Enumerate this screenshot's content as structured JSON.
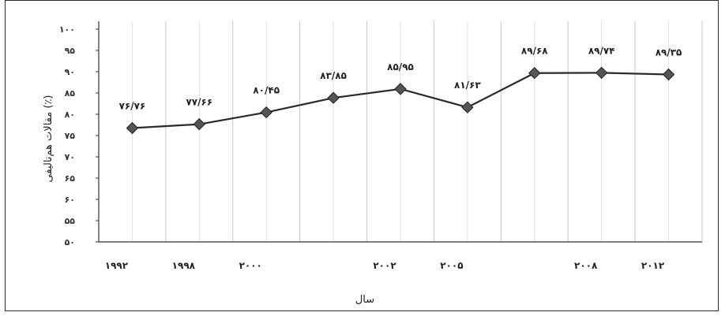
{
  "chart_data": {
    "type": "line",
    "title": "",
    "xlabel": "سال",
    "ylabel": "مقالات هم‌تالیفی (٪)",
    "ylim": [
      50,
      100
    ],
    "yticks": [
      "۱۰۰",
      "۹۵",
      "۹۰",
      "۸۵",
      "۸۰",
      "۷۵",
      "۷۰",
      "۶۵",
      "۶۰",
      "۵۵",
      "۵۰"
    ],
    "ytick_values": [
      100,
      95,
      90,
      85,
      80,
      75,
      70,
      65,
      60,
      55,
      50
    ],
    "categories": [
      "۱۹۹۲",
      "۱۹۹۸",
      "۲۰۰۰",
      "",
      "۲۰۰۲",
      "۲۰۰۵",
      "",
      "۲۰۰۸",
      "۲۰۱۲"
    ],
    "values": [
      76.76,
      77.66,
      80.45,
      83.85,
      85.95,
      81.63,
      89.68,
      89.74,
      89.35
    ],
    "data_labels": [
      "۷۶/۷۶",
      "۷۷/۶۶",
      "۸۰/۴۵",
      "۸۳/۸۵",
      "۸۵/۹۵",
      "۸۱/۶۳",
      "۸۹/۶۸",
      "۸۹/۷۴",
      "۸۹/۳۵"
    ],
    "grid": "vertical",
    "legend": "none",
    "colors": {
      "line": "#2a2a2a",
      "marker": "#555555",
      "grid": "#c8c8c8",
      "axis": "#333333"
    }
  }
}
